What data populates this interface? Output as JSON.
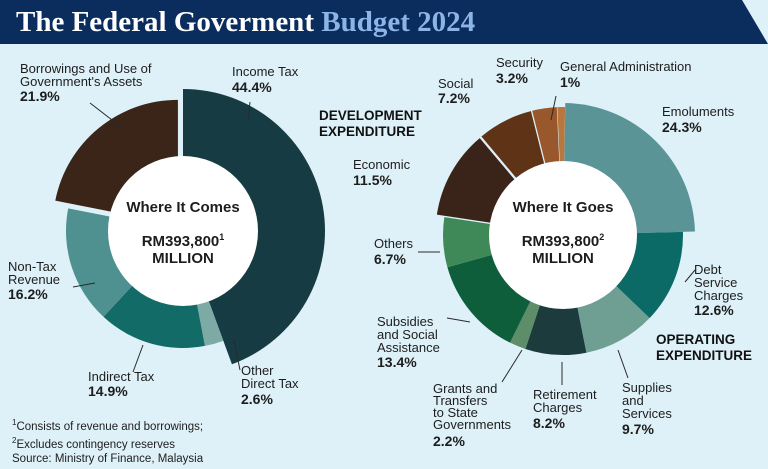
{
  "header": {
    "title_main": "The Federal Goverment",
    "title_highlight": "Budget 2024",
    "background_color": "#0b2d5e",
    "highlight_color": "#8db4e6"
  },
  "chart_data": [
    {
      "type": "pie",
      "title": "Where It Comes",
      "total_label": "RM393,800",
      "total_footnote": "1",
      "total_unit": "MILLION",
      "unit": "%",
      "slices": [
        {
          "name": "Income Tax",
          "value": 44.4,
          "color": "#163b42"
        },
        {
          "name": "Other Direct Tax",
          "value": 2.6,
          "color": "#7eaaa6"
        },
        {
          "name": "Indirect Tax",
          "value": 14.9,
          "color": "#126b67"
        },
        {
          "name": "Non-Tax Revenue",
          "value": 16.2,
          "color": "#4f9190"
        },
        {
          "name": "Borrowings and Use of Government's Assets",
          "value": 21.9,
          "color": "#3b2418"
        }
      ]
    },
    {
      "type": "pie",
      "title": "Where It Goes",
      "total_label": "RM393,800",
      "total_footnote": "2",
      "total_unit": "MILLION",
      "unit": "%",
      "groups": [
        "DEVELOPMENT EXPENDITURE",
        "OPERATING EXPENDITURE"
      ],
      "slices": [
        {
          "name": "Emoluments",
          "value": 24.3,
          "color": "#5a9497",
          "group": "OPERATING EXPENDITURE"
        },
        {
          "name": "Debt Service Charges",
          "value": 12.6,
          "color": "#0c6a66",
          "group": "OPERATING EXPENDITURE"
        },
        {
          "name": "Supplies and Services",
          "value": 9.7,
          "color": "#6f9f92",
          "group": "OPERATING EXPENDITURE"
        },
        {
          "name": "Retirement Charges",
          "value": 8.2,
          "color": "#1c3b3d",
          "group": "OPERATING EXPENDITURE"
        },
        {
          "name": "Grants and Transfers to State Governments",
          "value": 2.2,
          "color": "#5e8d6a",
          "group": "OPERATING EXPENDITURE"
        },
        {
          "name": "Subsidies and Social Assistance",
          "value": 13.4,
          "color": "#0e5e3b",
          "group": "OPERATING EXPENDITURE"
        },
        {
          "name": "Others",
          "value": 6.7,
          "color": "#3f8857",
          "group": "OPERATING EXPENDITURE"
        },
        {
          "name": "Economic",
          "value": 11.5,
          "color": "#3a2318",
          "group": "DEVELOPMENT EXPENDITURE"
        },
        {
          "name": "Social",
          "value": 7.2,
          "color": "#5f3316",
          "group": "DEVELOPMENT EXPENDITURE"
        },
        {
          "name": "Security",
          "value": 3.2,
          "color": "#99572c",
          "group": "DEVELOPMENT EXPENDITURE"
        },
        {
          "name": "General Administration",
          "value": 1,
          "color": "#b7773e",
          "group": "DEVELOPMENT EXPENDITURE"
        }
      ]
    }
  ],
  "labels": {
    "left": {
      "borrowings": [
        "Borrowings and Use of",
        "Government's Assets"
      ],
      "borrowings_pct": "21.9%",
      "income": "Income Tax",
      "income_pct": "44.4%",
      "nontax": [
        "Non-Tax",
        "Revenue"
      ],
      "nontax_pct": "16.2%",
      "indirect": "Indirect Tax",
      "indirect_pct": "14.9%",
      "otherdirect": [
        "Other",
        "Direct Tax"
      ],
      "otherdirect_pct": "2.6%"
    },
    "right": {
      "development": [
        "DEVELOPMENT",
        "EXPENDITURE"
      ],
      "operating": [
        "OPERATING",
        "EXPENDITURE"
      ],
      "security": "Security",
      "security_pct": "3.2%",
      "general": "General Administration",
      "general_pct": "1%",
      "social": "Social",
      "social_pct": "7.2%",
      "emoluments": "Emoluments",
      "emoluments_pct": "24.3%",
      "economic": "Economic",
      "economic_pct": "11.5%",
      "others": "Others",
      "others_pct": "6.7%",
      "debt": [
        "Debt",
        "Service",
        "Charges"
      ],
      "debt_pct": "12.6%",
      "subsidies": [
        "Subsidies",
        "and Social",
        "Assistance"
      ],
      "subsidies_pct": "13.4%",
      "grants": [
        "Grants and",
        "Transfers",
        "to State",
        "Governments"
      ],
      "grants_pct": "2.2%",
      "retirement": [
        "Retirement",
        "Charges"
      ],
      "retirement_pct": "8.2%",
      "supplies": [
        "Supplies",
        "and",
        "Services"
      ],
      "supplies_pct": "9.7%"
    }
  },
  "footnotes": {
    "n1_mark": "1",
    "n1_text": "Consists of revenue and borrowings;",
    "n2_mark": "2",
    "n2_text": "Excludes contingency reserves",
    "source": "Source: Ministry of Finance, Malaysia"
  }
}
